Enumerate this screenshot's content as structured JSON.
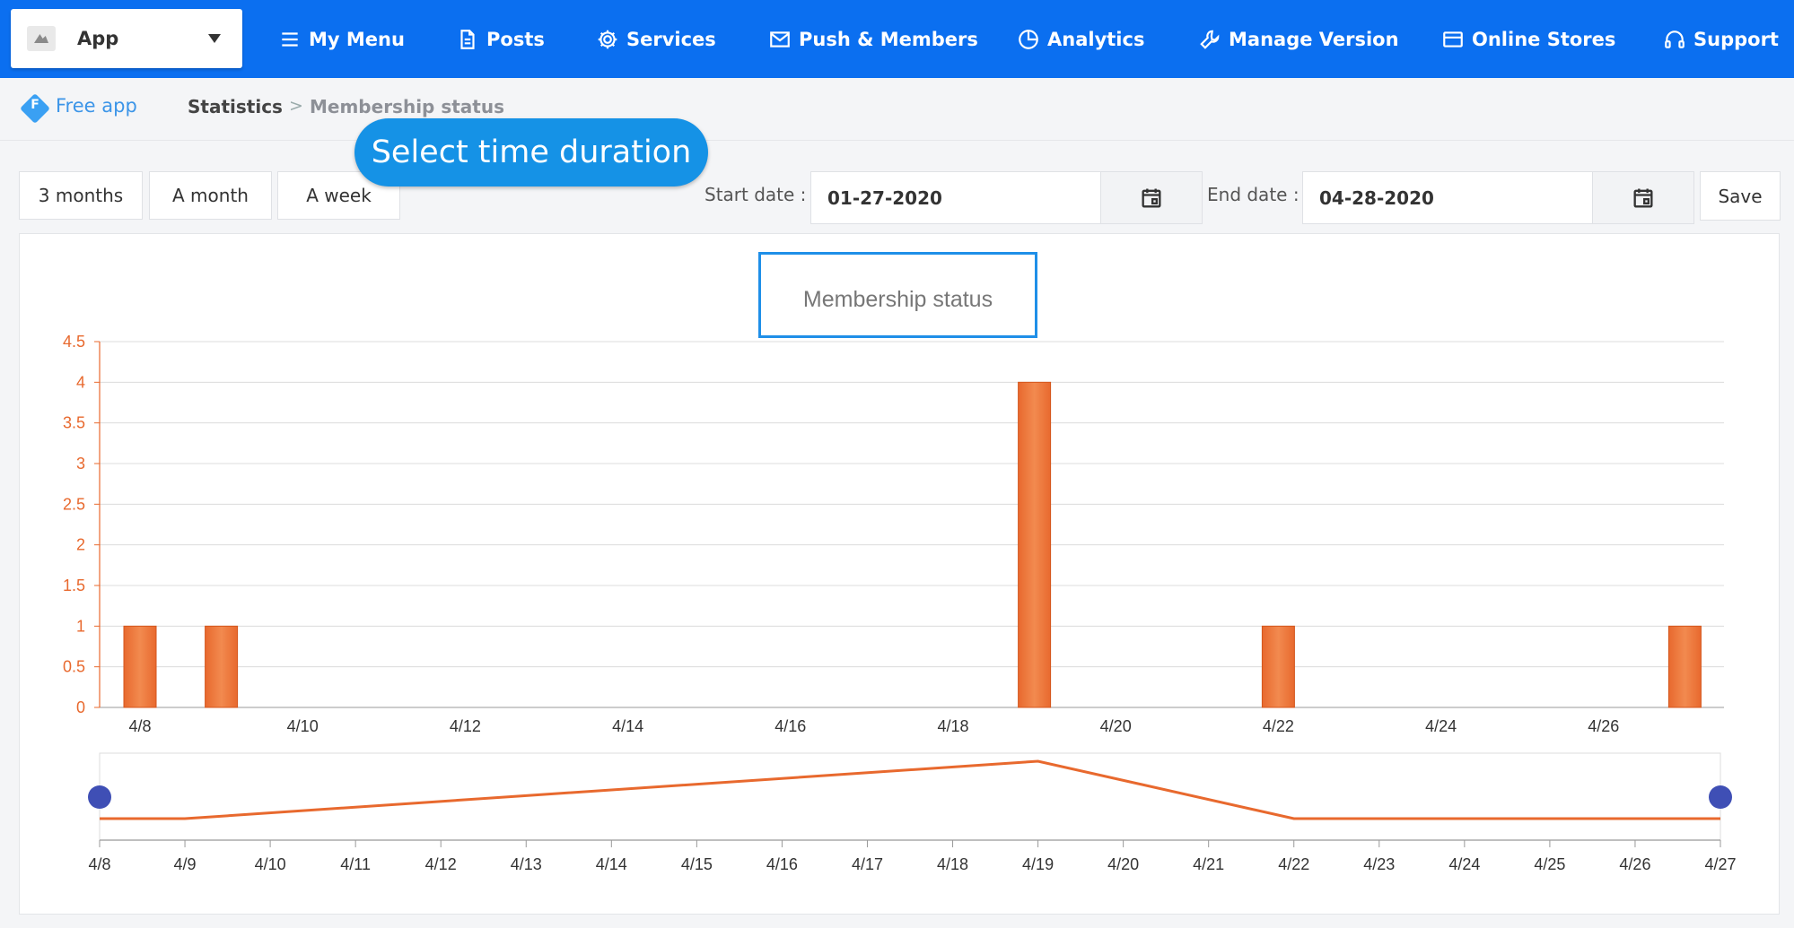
{
  "header": {
    "app_name": "App",
    "nav": [
      {
        "label": "My Menu",
        "icon": "menu-icon"
      },
      {
        "label": "Posts",
        "icon": "document-icon"
      },
      {
        "label": "Services",
        "icon": "gear-icon"
      },
      {
        "label": "Push & Members",
        "icon": "mail-icon"
      },
      {
        "label": "Analytics",
        "icon": "pie-chart-icon"
      },
      {
        "label": "Manage Version",
        "icon": "wrench-icon"
      },
      {
        "label": "Online Stores",
        "icon": "card-icon"
      },
      {
        "label": "Support",
        "icon": "headphones-icon"
      }
    ]
  },
  "breadcrumb": {
    "plan": "Free app",
    "plan_badge": "F",
    "section": "Statistics",
    "separator": ">",
    "current": "Membership status"
  },
  "tooltip": "Select time duration",
  "controls": {
    "range_buttons": [
      "3 months",
      "A month",
      "A week"
    ],
    "start_label": "Start date :",
    "start_value": "01-27-2020",
    "end_label": "End date :",
    "end_value": "04-28-2020",
    "save_label": "Save"
  },
  "colors": {
    "nav_bg": "#0b6ff0",
    "accent": "#e8692e",
    "bar_fill": "#f28a4f",
    "slider_handle": "#3f4fb5",
    "title_border": "#1f8fe8"
  },
  "chart_data": {
    "type": "bar",
    "title": "Membership status",
    "xlabel": "",
    "ylabel": "",
    "ylim": [
      0,
      4.5
    ],
    "yticks": [
      "0",
      "0.5",
      "1",
      "1.5",
      "2",
      "2.5",
      "3",
      "3.5",
      "4",
      "4.5"
    ],
    "categories": [
      "4/8",
      "4/9",
      "4/10",
      "4/11",
      "4/12",
      "4/13",
      "4/14",
      "4/15",
      "4/16",
      "4/17",
      "4/18",
      "4/19",
      "4/20",
      "4/21",
      "4/22",
      "4/23",
      "4/24",
      "4/25",
      "4/26",
      "4/27"
    ],
    "main_tick_labels": [
      "4/8",
      "4/10",
      "4/12",
      "4/14",
      "4/16",
      "4/18",
      "4/20",
      "4/22",
      "4/24",
      "4/26"
    ],
    "values": [
      1,
      1,
      0,
      0,
      0,
      0,
      0,
      0,
      0,
      0,
      0,
      4,
      0,
      0,
      1,
      0,
      0,
      0,
      0,
      1
    ],
    "navigator": {
      "type": "line",
      "x_labels": [
        "4/8",
        "4/9",
        "4/10",
        "4/11",
        "4/12",
        "4/13",
        "4/14",
        "4/15",
        "4/16",
        "4/17",
        "4/18",
        "4/19",
        "4/20",
        "4/21",
        "4/22",
        "4/23",
        "4/24",
        "4/25",
        "4/26",
        "4/27"
      ],
      "points": [
        [
          "4/8",
          1
        ],
        [
          "4/9",
          1
        ],
        [
          "4/19",
          4
        ],
        [
          "4/22",
          1
        ],
        [
          "4/27",
          1
        ]
      ]
    },
    "grid": true,
    "legend": "none"
  }
}
